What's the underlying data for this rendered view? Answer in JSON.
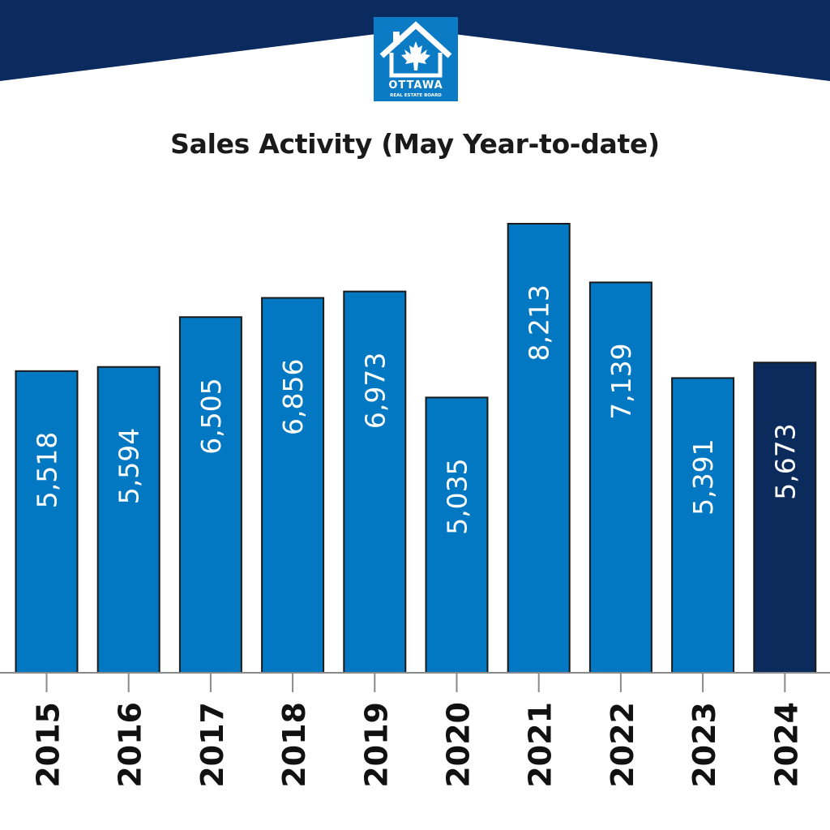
{
  "logo": {
    "text": "OTTAWA",
    "subtext": "REAL ESTATE BOARD",
    "background_color": "#0a7bc4"
  },
  "colors": {
    "banner": "#0b2a5e",
    "bar": "#0277c2",
    "bar_highlight": "#0a2b5c",
    "bar_border": "#1a1a1a",
    "axis": "#8a8a8a"
  },
  "chart_data": {
    "type": "bar",
    "title": "Sales Activity (May Year-to-date)",
    "xlabel": "",
    "ylabel": "",
    "categories": [
      "2015",
      "2016",
      "2017",
      "2018",
      "2019",
      "2020",
      "2021",
      "2022",
      "2023",
      "2024"
    ],
    "values": [
      5518,
      5594,
      6505,
      6856,
      6973,
      5035,
      8213,
      7139,
      5391,
      5673
    ],
    "value_labels": [
      "5,518",
      "5,594",
      "6,505",
      "6,856",
      "6,973",
      "5,035",
      "8,213",
      "7,139",
      "5,391",
      "5,673"
    ],
    "highlight_category": "2024",
    "ylim": [
      0,
      8213
    ],
    "grid": false,
    "legend": "none"
  }
}
